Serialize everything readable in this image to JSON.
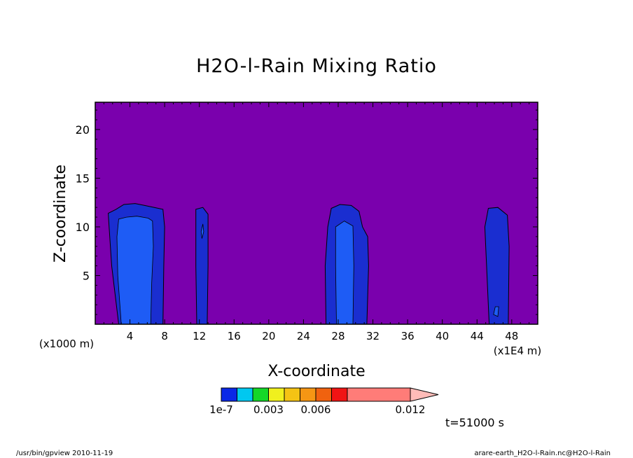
{
  "chart_data": {
    "type": "heatmap",
    "title": "H2O-l-Rain Mixing Ratio",
    "xlabel": "X-coordinate",
    "ylabel": "Z-coordinate",
    "x_unit_left": "(x1000 m)",
    "x_unit_right": "(x1E4 m)",
    "x_ticks": [
      "4",
      "8",
      "12",
      "16",
      "20",
      "24",
      "28",
      "32",
      "36",
      "40",
      "44",
      "48"
    ],
    "y_ticks": [
      "5",
      "10",
      "15",
      "20"
    ],
    "xlim": [
      0,
      51
    ],
    "ylim": [
      0,
      22.8
    ],
    "background_color": "#7a00ad",
    "levels": [
      "1e-7",
      "0.003",
      "0.006",
      "0.012"
    ],
    "colorbar_colors": [
      "#0a28e6",
      "#00c8f0",
      "#14d728",
      "#f0f01e",
      "#f5c314",
      "#f59614",
      "#f0620f",
      "#f01414",
      "#ff7c78",
      "#ffbcb8"
    ],
    "clouds": [
      {
        "outer": [
          [
            2.7,
            0
          ],
          [
            1.9,
            6
          ],
          [
            1.6,
            10
          ],
          [
            1.5,
            11.4
          ],
          [
            2.4,
            11.8
          ],
          [
            3.3,
            12.3
          ],
          [
            4.6,
            12.4
          ],
          [
            5.7,
            12.2
          ],
          [
            6.8,
            12.0
          ],
          [
            7.8,
            11.8
          ],
          [
            8,
            10
          ],
          [
            7.9,
            6
          ],
          [
            7.8,
            0
          ]
        ],
        "inner": [
          [
            3.0,
            0
          ],
          [
            2.6,
            5
          ],
          [
            2.5,
            9
          ],
          [
            2.7,
            10.8
          ],
          [
            3.6,
            11.0
          ],
          [
            4.8,
            11.1
          ],
          [
            6.1,
            10.9
          ],
          [
            6.6,
            10.6
          ],
          [
            6.7,
            8
          ],
          [
            6.5,
            4
          ],
          [
            6.4,
            0
          ]
        ]
      },
      {
        "outer": [
          [
            11.7,
            0
          ],
          [
            11.6,
            6
          ],
          [
            11.6,
            11.8
          ],
          [
            12.4,
            12.0
          ],
          [
            13.0,
            11.3
          ],
          [
            13.0,
            6
          ],
          [
            12.9,
            0
          ]
        ],
        "inner": [
          [
            12.2,
            9.5
          ],
          [
            12.4,
            10.3
          ],
          [
            12.5,
            9.5
          ],
          [
            12.3,
            8.8
          ]
        ]
      },
      {
        "outer": [
          [
            26.6,
            0
          ],
          [
            26.5,
            6
          ],
          [
            26.8,
            10
          ],
          [
            27.2,
            11.9
          ],
          [
            28.2,
            12.3
          ],
          [
            29.5,
            12.2
          ],
          [
            30.4,
            11.6
          ],
          [
            30.8,
            10
          ],
          [
            31.4,
            9
          ],
          [
            31.5,
            6
          ],
          [
            31.3,
            0
          ]
        ],
        "inner": [
          [
            27.8,
            0
          ],
          [
            27.7,
            6
          ],
          [
            27.7,
            10
          ],
          [
            28.7,
            10.6
          ],
          [
            29.7,
            10.1
          ],
          [
            29.8,
            6
          ],
          [
            29.7,
            0
          ]
        ]
      },
      {
        "outer": [
          [
            45.4,
            0
          ],
          [
            45.1,
            6
          ],
          [
            44.9,
            10
          ],
          [
            45.3,
            11.9
          ],
          [
            46.4,
            12.0
          ],
          [
            47.5,
            11.2
          ],
          [
            47.7,
            8
          ],
          [
            47.6,
            0
          ]
        ],
        "inner": [
          [
            45.9,
            1.0
          ],
          [
            46.1,
            1.8
          ],
          [
            46.5,
            1.8
          ],
          [
            46.4,
            0.8
          ]
        ]
      }
    ],
    "time_label": "t=51000 s"
  },
  "footer": {
    "left": "/usr/bin/gpview  2010-11-19",
    "right": "arare-earth_H2O-l-Rain.nc@H2O-l-Rain"
  }
}
